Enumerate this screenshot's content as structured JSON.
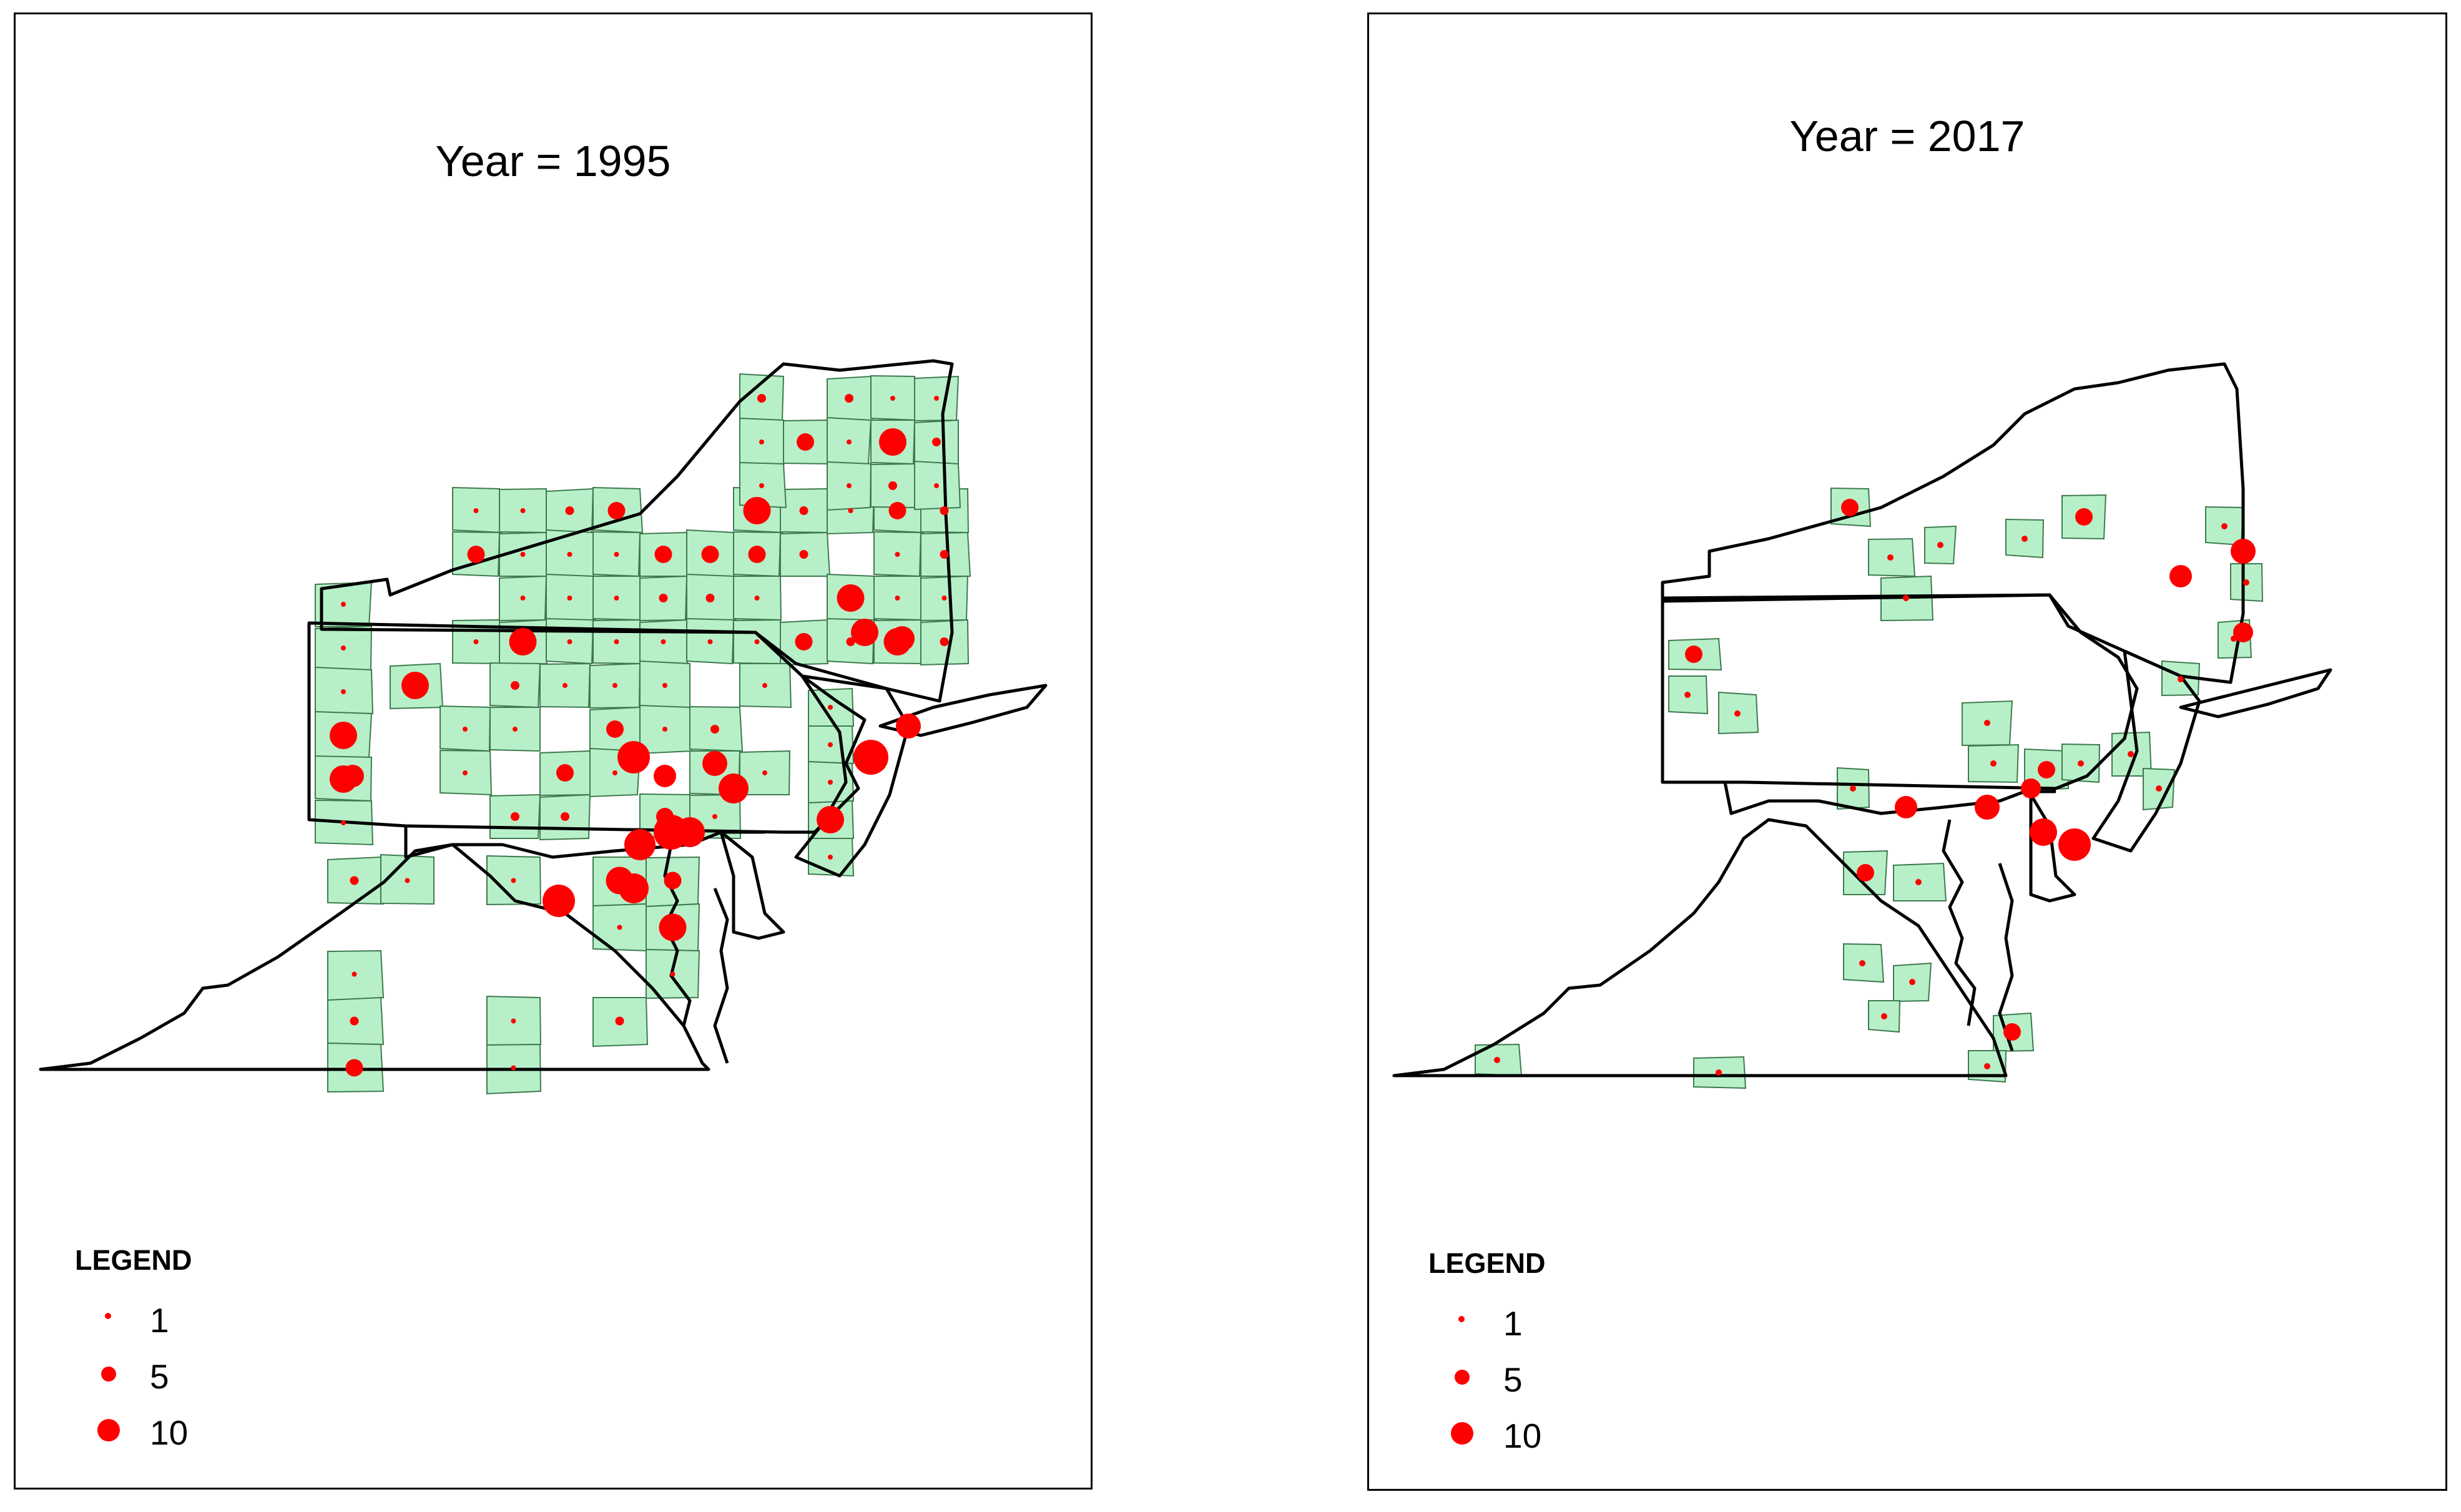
{
  "panels": [
    {
      "id": "1995",
      "title": "Year = 1995"
    },
    {
      "id": "2017",
      "title": "Year = 2017"
    }
  ],
  "legend": {
    "title": "LEGEND",
    "items": [
      {
        "label": "1",
        "value": 1
      },
      {
        "label": "5",
        "value": 5
      },
      {
        "label": "10",
        "value": 10
      }
    ]
  },
  "colors": {
    "county_fill": "#b7f0c8",
    "county_stroke": "#3e7a4e",
    "dot": "#ff0000",
    "state_stroke": "#000000"
  }
}
